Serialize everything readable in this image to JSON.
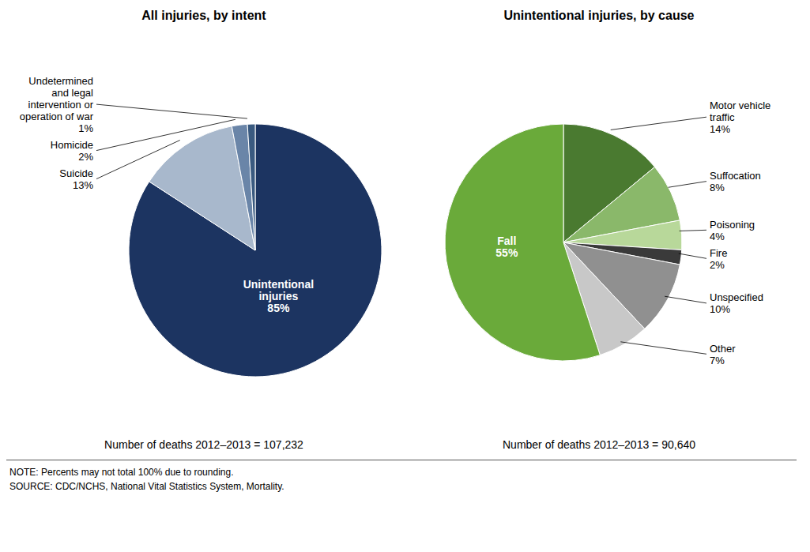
{
  "chart_data": [
    {
      "type": "pie",
      "title": "All injuries, by intent",
      "categories": [
        "Unintentional\ninjuries",
        "Suicide",
        "Homicide",
        "Undetermined\nand legal\nintervention or\noperation of war"
      ],
      "values": [
        85,
        13,
        2,
        1
      ],
      "value_labels": [
        "85%",
        "13%",
        "2%",
        "1%"
      ],
      "colors": [
        "#1c3461",
        "#a8b8cc",
        "#6a85a8",
        "#3a5a80"
      ],
      "annotations": [
        "Number of deaths 2012–2013 = 107,232",
        "NOTE: Percents may not total 100% due to rounding.",
        "SOURCE: CDC/NCHS, National Vital Statistics System, Mortality."
      ]
    },
    {
      "type": "pie",
      "title": "Unintentional injuries, by cause",
      "categories": [
        "Motor vehicle\ntraffic",
        "Suffocation",
        "Poisoning",
        "Fire",
        "Unspecified",
        "Other",
        "Fall"
      ],
      "values": [
        14,
        8,
        4,
        2,
        10,
        7,
        55
      ],
      "value_labels": [
        "14%",
        "8%",
        "4%",
        "2%",
        "10%",
        "7%",
        "55%"
      ],
      "colors": [
        "#4a7a30",
        "#8ab86a",
        "#b8d89a",
        "#3a3a3a",
        "#909090",
        "#c8c8c8",
        "#6aaa3a"
      ],
      "annotations": [
        "Number of deaths 2012–2013 = 90,640"
      ]
    }
  ]
}
